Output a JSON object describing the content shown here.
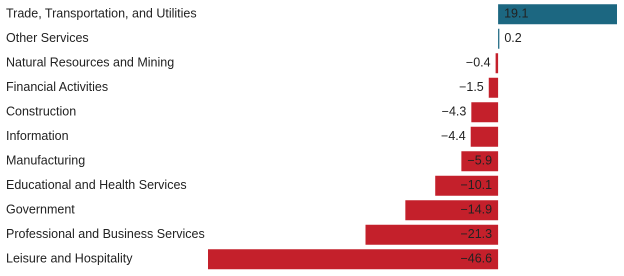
{
  "chart_data": {
    "type": "bar",
    "orientation": "horizontal",
    "categories": [
      "Trade, Transportation, and Utilities",
      "Other Services",
      "Natural Resources and Mining",
      "Financial Activities",
      "Construction",
      "Information",
      "Manufacturing",
      "Educational and Health Services",
      "Government",
      "Professional and Business Services",
      "Leisure and Hospitality"
    ],
    "values": [
      19.1,
      0.2,
      -0.4,
      -1.5,
      -4.3,
      -4.4,
      -5.9,
      -10.1,
      -14.9,
      -21.3,
      -46.6
    ],
    "value_labels": [
      "19.1",
      "0.2",
      "−0.4",
      "−1.5",
      "−4.3",
      "−4.4",
      "−5.9",
      "−10.1",
      "−14.9",
      "−21.3",
      "−46.6"
    ],
    "color_positive": "#1c6781",
    "color_negative": "#c4202b"
  }
}
